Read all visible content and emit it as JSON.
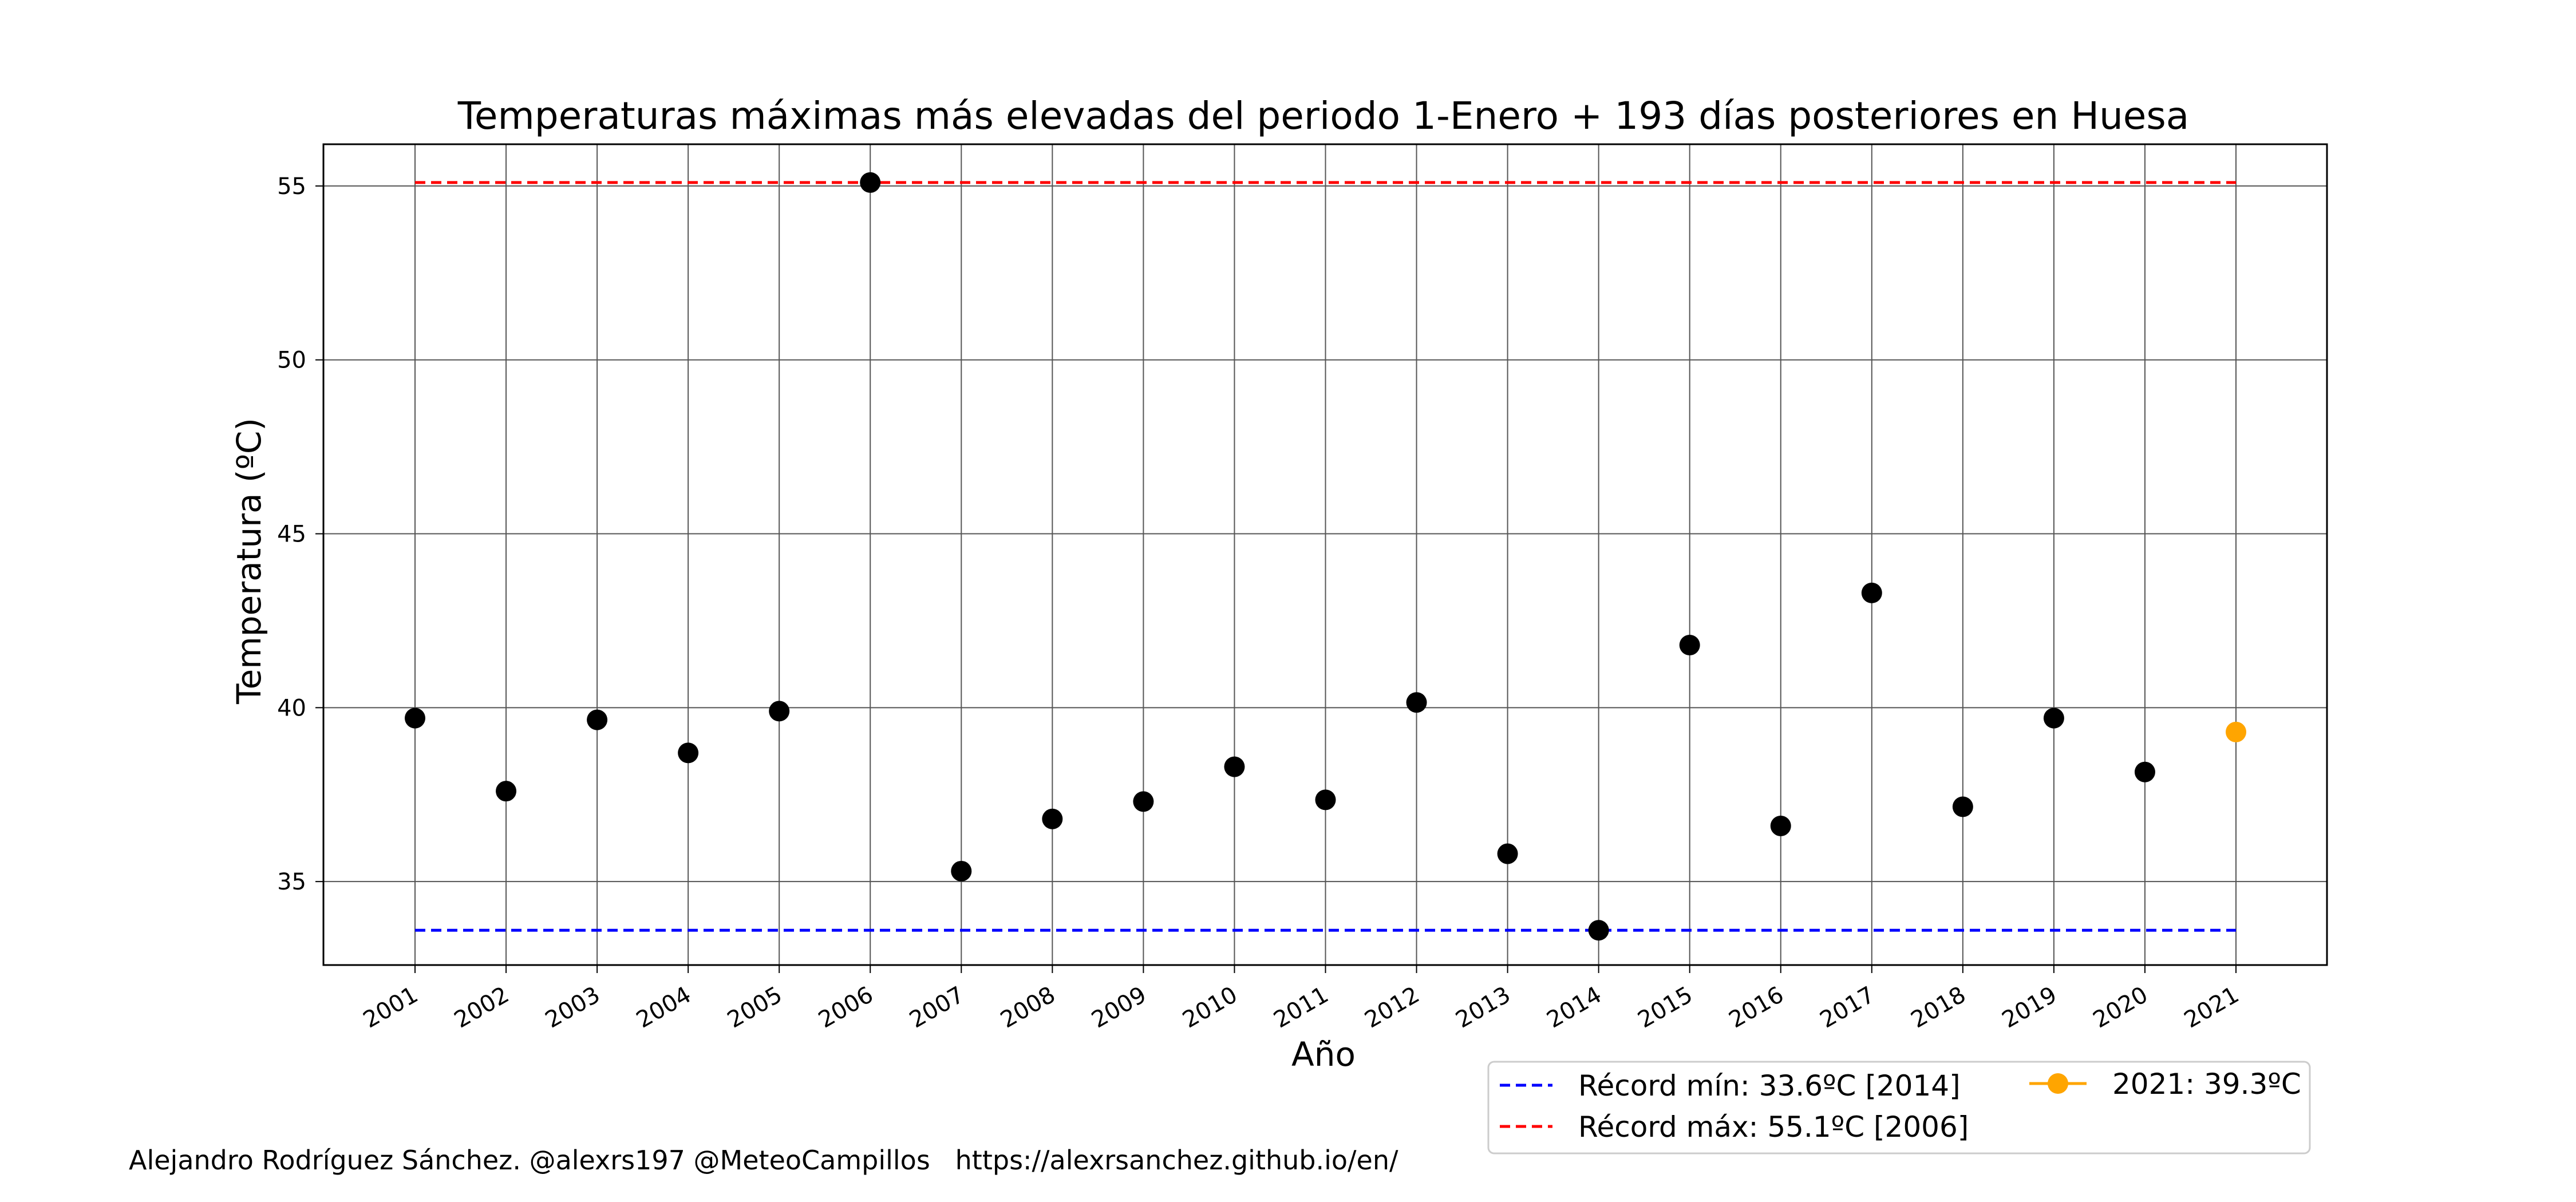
{
  "chart_data": {
    "type": "scatter",
    "title": "Temperaturas máximas más elevadas del periodo 1-Enero + 193 días posteriores en Huesa",
    "xlabel": "Año",
    "ylabel": "Temperatura (ºC)",
    "x_ticks": [
      "2001",
      "2002",
      "2003",
      "2004",
      "2005",
      "2006",
      "2007",
      "2008",
      "2009",
      "2010",
      "2011",
      "2012",
      "2013",
      "2014",
      "2015",
      "2016",
      "2017",
      "2018",
      "2019",
      "2020",
      "2021"
    ],
    "y_ticks": [
      35,
      40,
      45,
      50,
      55
    ],
    "ylim": [
      32.6,
      56.2
    ],
    "grid": true,
    "series": [
      {
        "color": "#000000",
        "marker": "circle",
        "points": [
          {
            "x": 2001,
            "y": 39.7
          },
          {
            "x": 2002,
            "y": 37.6
          },
          {
            "x": 2003,
            "y": 39.65
          },
          {
            "x": 2004,
            "y": 38.7
          },
          {
            "x": 2005,
            "y": 39.9
          },
          {
            "x": 2006,
            "y": 55.1
          },
          {
            "x": 2007,
            "y": 35.3
          },
          {
            "x": 2008,
            "y": 36.8
          },
          {
            "x": 2009,
            "y": 37.3
          },
          {
            "x": 2010,
            "y": 38.3
          },
          {
            "x": 2011,
            "y": 37.35
          },
          {
            "x": 2012,
            "y": 40.15
          },
          {
            "x": 2013,
            "y": 35.8
          },
          {
            "x": 2014,
            "y": 33.6
          },
          {
            "x": 2015,
            "y": 41.8
          },
          {
            "x": 2016,
            "y": 36.6
          },
          {
            "x": 2017,
            "y": 43.3
          },
          {
            "x": 2018,
            "y": 37.15
          },
          {
            "x": 2019,
            "y": 39.7
          },
          {
            "x": 2020,
            "y": 38.15
          }
        ]
      },
      {
        "name": "2021: 39.3ºC",
        "color": "#FFA500",
        "marker": "circle",
        "points": [
          {
            "x": 2021,
            "y": 39.3
          }
        ]
      }
    ],
    "reference_lines": [
      {
        "name": "Récord mín: 33.6ºC [2014]",
        "y": 33.6,
        "color": "#0000FF",
        "style": "dashed"
      },
      {
        "name": "Récord máx: 55.1ºC [2006]",
        "y": 55.1,
        "color": "#FF0000",
        "style": "dashed"
      }
    ],
    "legend": {
      "placement": "bottom-right",
      "entries": [
        "Récord mín: 33.6ºC [2014]",
        "Récord máx: 55.1ºC [2006]",
        "2021: 39.3ºC"
      ]
    }
  },
  "footer": {
    "credit": "Alejandro Rodríguez Sánchez. @alexrs197 @MeteoCampillos   https://alexrsanchez.github.io/en/"
  }
}
